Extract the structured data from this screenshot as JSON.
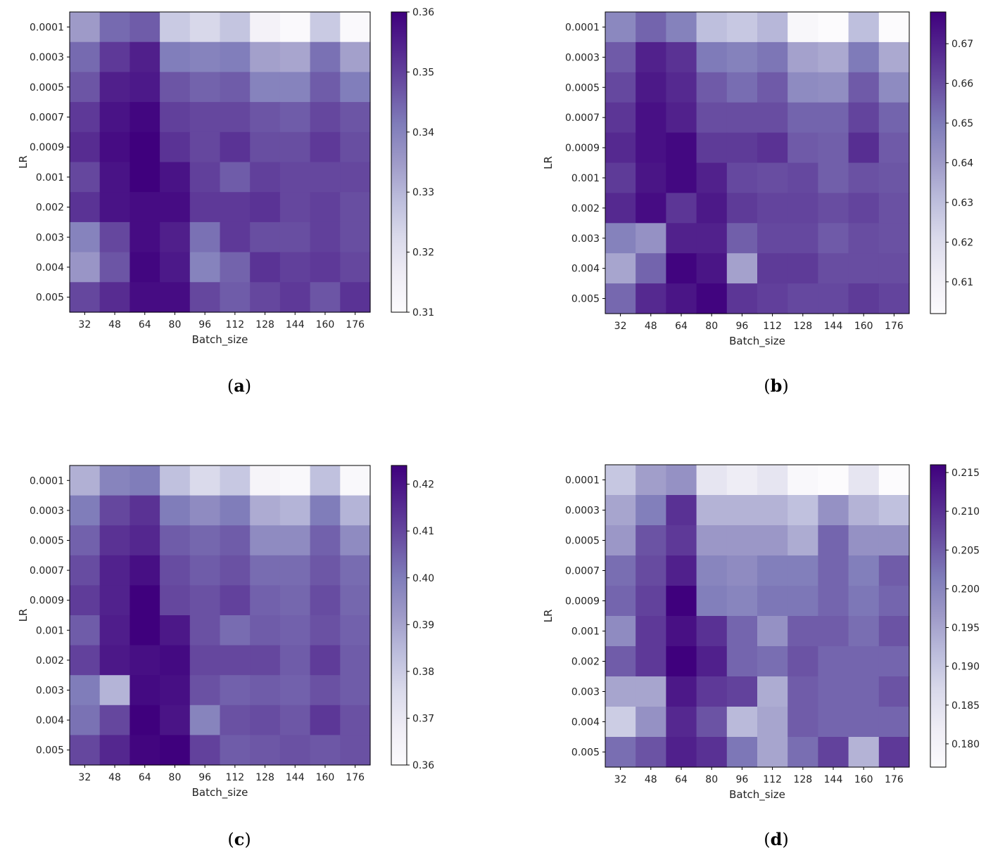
{
  "chart_data": [
    {
      "panel": "(a)",
      "caption": {
        "open": "(",
        "letter": "a",
        "close": ")"
      },
      "type": "heatmap",
      "xlabel": "Batch_size",
      "ylabel": "LR",
      "x_categories": [
        "32",
        "48",
        "64",
        "80",
        "96",
        "112",
        "128",
        "144",
        "160",
        "176"
      ],
      "y_categories": [
        "0.0001",
        "0.0003",
        "0.0005",
        "0.0007",
        "0.0009",
        "0.001",
        "0.002",
        "0.003",
        "0.004",
        "0.005"
      ],
      "zlim": [
        0.31,
        0.36
      ],
      "colorbar_ticks": [
        0.31,
        0.32,
        0.33,
        0.34,
        0.35,
        0.36
      ],
      "colorbar_labels": [
        "0.31",
        "0.32",
        "0.33",
        "0.34",
        "0.35",
        "0.36"
      ],
      "values": [
        [
          0.335,
          0.344,
          0.346,
          0.326,
          0.323,
          0.327,
          0.314,
          0.311,
          0.326,
          0.311
        ],
        [
          0.344,
          0.351,
          0.355,
          0.341,
          0.34,
          0.341,
          0.334,
          0.333,
          0.343,
          0.334
        ],
        [
          0.347,
          0.355,
          0.356,
          0.347,
          0.345,
          0.346,
          0.34,
          0.34,
          0.346,
          0.341
        ],
        [
          0.351,
          0.357,
          0.359,
          0.35,
          0.349,
          0.349,
          0.347,
          0.346,
          0.349,
          0.347
        ],
        [
          0.353,
          0.358,
          0.36,
          0.352,
          0.349,
          0.352,
          0.348,
          0.348,
          0.351,
          0.348
        ],
        [
          0.349,
          0.357,
          0.36,
          0.357,
          0.35,
          0.346,
          0.35,
          0.349,
          0.349,
          0.349
        ],
        [
          0.352,
          0.357,
          0.358,
          0.358,
          0.351,
          0.351,
          0.352,
          0.349,
          0.35,
          0.348
        ],
        [
          0.34,
          0.349,
          0.358,
          0.355,
          0.343,
          0.351,
          0.348,
          0.348,
          0.35,
          0.348
        ],
        [
          0.336,
          0.347,
          0.359,
          0.356,
          0.34,
          0.345,
          0.352,
          0.35,
          0.351,
          0.349
        ],
        [
          0.349,
          0.353,
          0.358,
          0.358,
          0.349,
          0.346,
          0.349,
          0.351,
          0.347,
          0.352
        ]
      ]
    },
    {
      "panel": "(b)",
      "caption": {
        "open": "(",
        "letter": "b",
        "close": ")"
      },
      "type": "heatmap",
      "xlabel": "Batch_size",
      "ylabel": "LR",
      "x_categories": [
        "32",
        "48",
        "64",
        "80",
        "96",
        "112",
        "128",
        "144",
        "160",
        "176"
      ],
      "y_categories": [
        "0.0001",
        "0.0003",
        "0.0005",
        "0.0007",
        "0.0009",
        "0.001",
        "0.002",
        "0.003",
        "0.004",
        "0.005"
      ],
      "zlim": [
        0.602,
        0.678
      ],
      "colorbar_ticks": [
        0.61,
        0.62,
        0.63,
        0.64,
        0.65,
        0.66,
        0.67
      ],
      "colorbar_labels": [
        "0.61",
        "0.62",
        "0.63",
        "0.64",
        "0.65",
        "0.66",
        "0.67"
      ],
      "values": [
        [
          0.646,
          0.655,
          0.648,
          0.63,
          0.627,
          0.632,
          0.605,
          0.602,
          0.63,
          0.602
        ],
        [
          0.657,
          0.67,
          0.666,
          0.65,
          0.648,
          0.651,
          0.638,
          0.636,
          0.65,
          0.636
        ],
        [
          0.661,
          0.672,
          0.668,
          0.657,
          0.653,
          0.657,
          0.645,
          0.644,
          0.657,
          0.645
        ],
        [
          0.665,
          0.674,
          0.67,
          0.66,
          0.66,
          0.66,
          0.655,
          0.655,
          0.662,
          0.655
        ],
        [
          0.668,
          0.674,
          0.676,
          0.664,
          0.664,
          0.666,
          0.657,
          0.656,
          0.667,
          0.657
        ],
        [
          0.664,
          0.673,
          0.676,
          0.67,
          0.661,
          0.66,
          0.661,
          0.656,
          0.659,
          0.658
        ],
        [
          0.668,
          0.675,
          0.665,
          0.672,
          0.664,
          0.662,
          0.662,
          0.66,
          0.662,
          0.659
        ],
        [
          0.648,
          0.643,
          0.67,
          0.67,
          0.656,
          0.661,
          0.661,
          0.657,
          0.66,
          0.659
        ],
        [
          0.637,
          0.655,
          0.677,
          0.673,
          0.638,
          0.664,
          0.664,
          0.66,
          0.66,
          0.66
        ],
        [
          0.654,
          0.668,
          0.673,
          0.677,
          0.665,
          0.663,
          0.661,
          0.661,
          0.664,
          0.662
        ]
      ]
    },
    {
      "panel": "(c)",
      "caption": {
        "open": "(",
        "letter": "c",
        "close": ")"
      },
      "type": "heatmap",
      "xlabel": "Batch_size",
      "ylabel": "LR",
      "x_categories": [
        "32",
        "48",
        "64",
        "80",
        "96",
        "112",
        "128",
        "144",
        "160",
        "176"
      ],
      "y_categories": [
        "0.0001",
        "0.0003",
        "0.0005",
        "0.0007",
        "0.0009",
        "0.001",
        "0.002",
        "0.003",
        "0.004",
        "0.005"
      ],
      "zlim": [
        0.36,
        0.424
      ],
      "colorbar_ticks": [
        0.36,
        0.37,
        0.38,
        0.39,
        0.4,
        0.41,
        0.42
      ],
      "colorbar_labels": [
        "0.36",
        "0.37",
        "0.38",
        "0.39",
        "0.40",
        "0.41",
        "0.42"
      ],
      "values": [
        [
          0.387,
          0.398,
          0.4,
          0.383,
          0.376,
          0.381,
          0.364,
          0.362,
          0.383,
          0.362
        ],
        [
          0.4,
          0.41,
          0.414,
          0.4,
          0.396,
          0.4,
          0.388,
          0.386,
          0.4,
          0.386
        ],
        [
          0.405,
          0.414,
          0.416,
          0.406,
          0.404,
          0.406,
          0.396,
          0.396,
          0.405,
          0.396
        ],
        [
          0.409,
          0.417,
          0.421,
          0.409,
          0.406,
          0.408,
          0.403,
          0.403,
          0.407,
          0.403
        ],
        [
          0.412,
          0.417,
          0.424,
          0.41,
          0.408,
          0.411,
          0.405,
          0.404,
          0.409,
          0.404
        ],
        [
          0.406,
          0.418,
          0.424,
          0.419,
          0.408,
          0.403,
          0.406,
          0.405,
          0.408,
          0.405
        ],
        [
          0.411,
          0.419,
          0.421,
          0.422,
          0.41,
          0.41,
          0.41,
          0.406,
          0.412,
          0.406
        ],
        [
          0.4,
          0.386,
          0.422,
          0.421,
          0.408,
          0.405,
          0.406,
          0.405,
          0.408,
          0.406
        ],
        [
          0.402,
          0.41,
          0.424,
          0.42,
          0.398,
          0.408,
          0.409,
          0.407,
          0.413,
          0.408
        ],
        [
          0.41,
          0.416,
          0.423,
          0.424,
          0.411,
          0.406,
          0.407,
          0.408,
          0.407,
          0.408
        ]
      ]
    },
    {
      "panel": "(d)",
      "caption": {
        "open": "(",
        "letter": "d",
        "close": ")"
      },
      "type": "heatmap",
      "xlabel": "Batch_size",
      "ylabel": "LR",
      "x_categories": [
        "32",
        "48",
        "64",
        "80",
        "96",
        "112",
        "128",
        "144",
        "160",
        "176"
      ],
      "y_categories": [
        "0.0001",
        "0.0003",
        "0.0005",
        "0.0007",
        "0.0009",
        "0.001",
        "0.002",
        "0.003",
        "0.004",
        "0.005"
      ],
      "zlim": [
        0.177,
        0.216
      ],
      "colorbar_ticks": [
        0.18,
        0.185,
        0.19,
        0.195,
        0.2,
        0.205,
        0.21,
        0.215
      ],
      "colorbar_labels": [
        "0.180",
        "0.185",
        "0.190",
        "0.195",
        "0.200",
        "0.205",
        "0.210",
        "0.215"
      ],
      "values": [
        [
          0.19,
          0.196,
          0.198,
          0.184,
          0.182,
          0.184,
          0.178,
          0.177,
          0.184,
          0.177
        ],
        [
          0.195,
          0.201,
          0.21,
          0.193,
          0.193,
          0.193,
          0.191,
          0.198,
          0.193,
          0.191
        ],
        [
          0.197,
          0.206,
          0.209,
          0.197,
          0.197,
          0.197,
          0.194,
          0.204,
          0.198,
          0.198
        ],
        [
          0.203,
          0.207,
          0.212,
          0.2,
          0.199,
          0.201,
          0.201,
          0.204,
          0.201,
          0.205
        ],
        [
          0.204,
          0.208,
          0.216,
          0.201,
          0.2,
          0.202,
          0.202,
          0.204,
          0.202,
          0.204
        ],
        [
          0.199,
          0.209,
          0.214,
          0.21,
          0.204,
          0.198,
          0.205,
          0.205,
          0.203,
          0.206
        ],
        [
          0.205,
          0.209,
          0.216,
          0.212,
          0.204,
          0.203,
          0.206,
          0.204,
          0.204,
          0.204
        ],
        [
          0.195,
          0.195,
          0.213,
          0.209,
          0.208,
          0.194,
          0.205,
          0.204,
          0.204,
          0.206
        ],
        [
          0.189,
          0.198,
          0.211,
          0.206,
          0.192,
          0.195,
          0.205,
          0.204,
          0.204,
          0.204
        ],
        [
          0.203,
          0.206,
          0.212,
          0.21,
          0.202,
          0.195,
          0.203,
          0.208,
          0.193,
          0.209
        ]
      ]
    }
  ]
}
